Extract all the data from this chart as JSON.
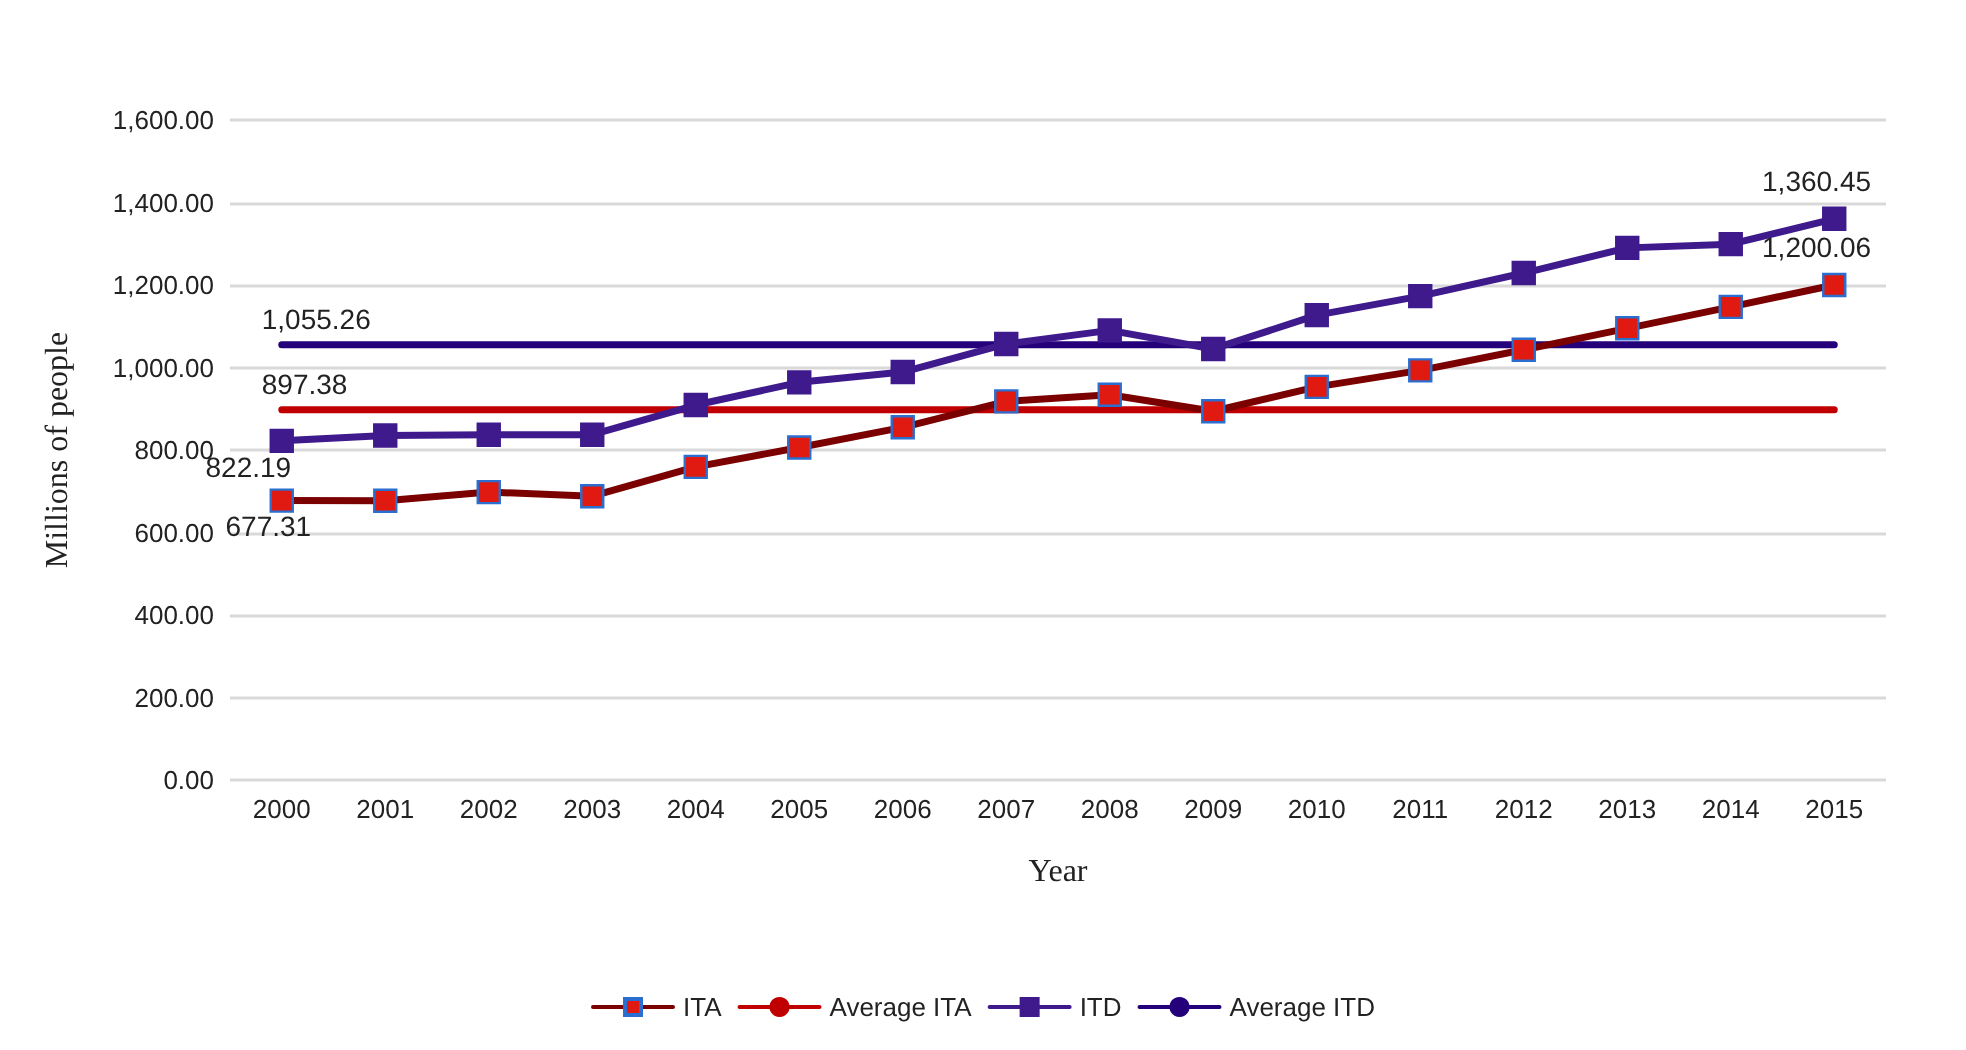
{
  "chart_data": {
    "type": "line",
    "xlabel": "Year",
    "ylabel": "Millions of people",
    "categories": [
      "2000",
      "2001",
      "2002",
      "2003",
      "2004",
      "2005",
      "2006",
      "2007",
      "2008",
      "2009",
      "2010",
      "2011",
      "2012",
      "2013",
      "2014",
      "2015"
    ],
    "series": [
      {
        "name": "ITA",
        "color": "#7b0000",
        "marker": "square",
        "values": [
          677.31,
          677,
          698,
          688,
          759,
          806,
          855,
          918,
          934,
          894,
          953,
          993,
          1043,
          1095,
          1147,
          1200.06
        ],
        "value_labels": [
          "677.31",
          null,
          null,
          null,
          null,
          null,
          null,
          null,
          null,
          null,
          null,
          null,
          null,
          null,
          null,
          "1,200.06"
        ]
      },
      {
        "name": "Average ITA",
        "color": "#c00000",
        "marker": "none",
        "values": [
          897.38,
          897.38,
          897.38,
          897.38,
          897.38,
          897.38,
          897.38,
          897.38,
          897.38,
          897.38,
          897.38,
          897.38,
          897.38,
          897.38,
          897.38,
          897.38
        ],
        "value_labels": [
          "897.38",
          null,
          null,
          null,
          null,
          null,
          null,
          null,
          null,
          null,
          null,
          null,
          null,
          null,
          null,
          null
        ]
      },
      {
        "name": "ITD",
        "color": "#3e1a8c",
        "marker": "square",
        "values": [
          822.19,
          835,
          837,
          837,
          909,
          964,
          989,
          1057,
          1090,
          1045,
          1127,
          1173,
          1229,
          1290,
          1299,
          1360.45
        ],
        "value_labels": [
          "822.19",
          null,
          null,
          null,
          null,
          null,
          null,
          null,
          null,
          null,
          null,
          null,
          null,
          null,
          null,
          "1,360.45"
        ]
      },
      {
        "name": "Average ITD",
        "color": "#24007a",
        "marker": "none",
        "values": [
          1055.26,
          1055.26,
          1055.26,
          1055.26,
          1055.26,
          1055.26,
          1055.26,
          1055.26,
          1055.26,
          1055.26,
          1055.26,
          1055.26,
          1055.26,
          1055.26,
          1055.26,
          1055.26
        ],
        "value_labels": [
          "1,055.26",
          null,
          null,
          null,
          null,
          null,
          null,
          null,
          null,
          null,
          null,
          null,
          null,
          null,
          null,
          null
        ]
      }
    ],
    "ylim": [
      0,
      1600
    ],
    "yticks": [
      {
        "value": 0,
        "label": "0.00"
      },
      {
        "value": 200,
        "label": "200.00"
      },
      {
        "value": 400,
        "label": "400.00"
      },
      {
        "value": 600,
        "label": "600.00"
      },
      {
        "value": 800,
        "label": "800.00"
      },
      {
        "value": 1000,
        "label": "1,000.00"
      },
      {
        "value": 1200,
        "label": "1,200.00"
      },
      {
        "value": 1400,
        "label": "1,400.00"
      },
      {
        "value": 1600,
        "label": "1,600.00"
      }
    ],
    "grid": "y",
    "legend": "bottom",
    "line_style": "solid"
  }
}
